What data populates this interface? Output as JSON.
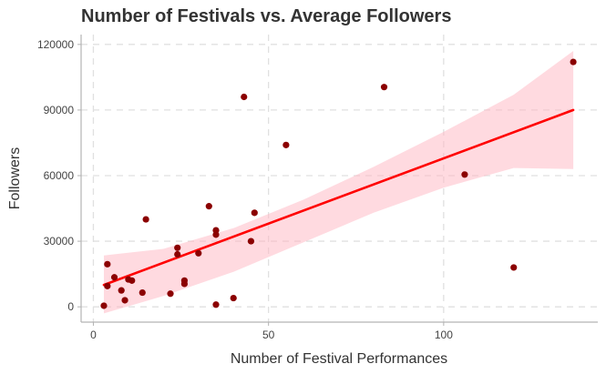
{
  "chart_data": {
    "type": "scatter",
    "title": "Number of Festivals vs. Average Followers",
    "xlabel": "Number of Festival Performances",
    "ylabel": "Followers",
    "xlim": [
      -3.5,
      144
    ],
    "ylim": [
      -7000,
      124500
    ],
    "x_ticks": [
      0,
      50,
      100
    ],
    "y_ticks": [
      0,
      30000,
      60000,
      90000,
      120000
    ],
    "x_tick_labels": [
      "0",
      "50",
      "100"
    ],
    "y_tick_labels": [
      "0",
      "30000",
      "60000",
      "90000",
      "120000"
    ],
    "grid": true,
    "legend": "none",
    "colors": {
      "points": "#8b0000",
      "trend_line": "#ff0000",
      "confidence_band": "#ffb6c1",
      "grid": "#e0e0e0",
      "axis": "#b3b3b3"
    },
    "points": [
      {
        "x": 3,
        "y": 500
      },
      {
        "x": 4,
        "y": 9500
      },
      {
        "x": 4,
        "y": 19500
      },
      {
        "x": 6,
        "y": 13500
      },
      {
        "x": 8,
        "y": 7500
      },
      {
        "x": 9,
        "y": 3000
      },
      {
        "x": 10,
        "y": 12500
      },
      {
        "x": 11,
        "y": 12000
      },
      {
        "x": 14,
        "y": 6500
      },
      {
        "x": 15,
        "y": 40000
      },
      {
        "x": 22,
        "y": 6000
      },
      {
        "x": 24,
        "y": 24000
      },
      {
        "x": 24,
        "y": 27000
      },
      {
        "x": 26,
        "y": 12000
      },
      {
        "x": 26,
        "y": 10500
      },
      {
        "x": 30,
        "y": 24500
      },
      {
        "x": 33,
        "y": 46000
      },
      {
        "x": 35,
        "y": 33000
      },
      {
        "x": 35,
        "y": 35000
      },
      {
        "x": 35,
        "y": 1000
      },
      {
        "x": 40,
        "y": 4000
      },
      {
        "x": 43,
        "y": 96000
      },
      {
        "x": 45,
        "y": 30000
      },
      {
        "x": 46,
        "y": 43000
      },
      {
        "x": 55,
        "y": 74000
      },
      {
        "x": 83,
        "y": 100500
      },
      {
        "x": 106,
        "y": 60500
      },
      {
        "x": 120,
        "y": 18000
      },
      {
        "x": 137,
        "y": 112000
      }
    ],
    "trend_line": {
      "x": [
        3,
        137
      ],
      "y": [
        10000,
        90000
      ]
    },
    "confidence_band": {
      "x": [
        3,
        20,
        40,
        60,
        80,
        100,
        120,
        137
      ],
      "upper": [
        23500,
        26500,
        36000,
        49000,
        64000,
        80000,
        97000,
        117000
      ],
      "lower": [
        -3000,
        5000,
        16000,
        29500,
        43000,
        54500,
        63500,
        63000
      ]
    }
  }
}
